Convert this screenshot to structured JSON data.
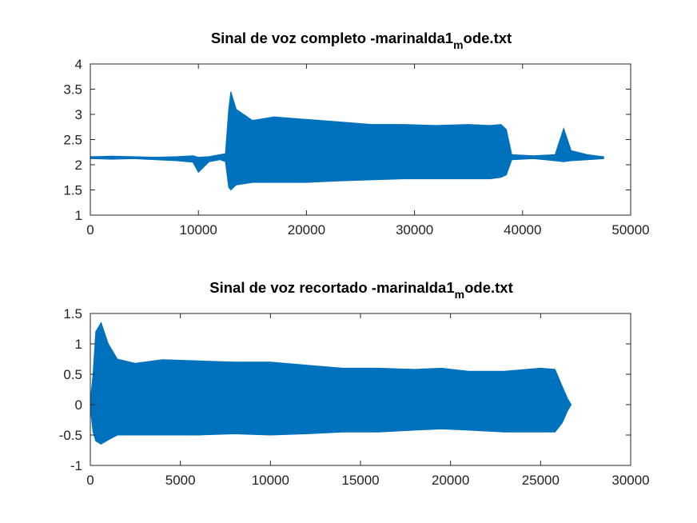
{
  "chart_data": [
    {
      "type": "line",
      "title": {
        "main": "Sinal de voz completo -marinalda1",
        "sub": "m",
        "tail": "ode.txt"
      },
      "xlim": [
        0,
        50000
      ],
      "ylim": [
        1,
        4
      ],
      "xticks": [
        0,
        10000,
        20000,
        30000,
        40000,
        50000
      ],
      "yticks": [
        1,
        1.5,
        2,
        2.5,
        3,
        3.5,
        4
      ],
      "xtick_labels": [
        "0",
        "10000",
        "20000",
        "30000",
        "40000",
        "50000"
      ],
      "ytick_labels": [
        "1",
        "1.5",
        "2",
        "2.5",
        "3",
        "3.5",
        "4"
      ],
      "series": [
        {
          "color": "#0072bd",
          "x": [
            0,
            2000,
            4000,
            6000,
            8000,
            9500,
            10000,
            11000,
            12000,
            12500,
            12800,
            13000,
            13500,
            15000,
            17000,
            20000,
            23000,
            26000,
            29000,
            32000,
            35000,
            37000,
            38000,
            38500,
            39000,
            41000,
            43000,
            43800,
            44500,
            46000,
            47500
          ],
          "upper": [
            2.16,
            2.17,
            2.16,
            2.15,
            2.16,
            2.18,
            2.15,
            2.16,
            2.2,
            2.22,
            3.1,
            3.45,
            3.1,
            2.88,
            2.95,
            2.9,
            2.85,
            2.8,
            2.8,
            2.78,
            2.8,
            2.78,
            2.8,
            2.7,
            2.2,
            2.18,
            2.2,
            2.72,
            2.28,
            2.2,
            2.16
          ],
          "lower": [
            2.12,
            2.11,
            2.12,
            2.1,
            2.08,
            2.05,
            1.85,
            2.06,
            2.1,
            2.06,
            1.55,
            1.5,
            1.6,
            1.65,
            1.65,
            1.65,
            1.68,
            1.7,
            1.72,
            1.72,
            1.72,
            1.72,
            1.75,
            1.8,
            2.1,
            2.12,
            2.08,
            2.06,
            2.08,
            2.1,
            2.12
          ]
        }
      ]
    },
    {
      "type": "line",
      "title": {
        "main": "Sinal de voz recortado -marinalda1",
        "sub": "m",
        "tail": "ode.txt"
      },
      "xlim": [
        0,
        30000
      ],
      "ylim": [
        -1,
        1.5
      ],
      "xticks": [
        0,
        5000,
        10000,
        15000,
        20000,
        25000,
        30000
      ],
      "yticks": [
        -1,
        -0.5,
        0,
        0.5,
        1,
        1.5
      ],
      "xtick_labels": [
        "0",
        "5000",
        "10000",
        "15000",
        "20000",
        "25000",
        "30000"
      ],
      "ytick_labels": [
        "-1",
        "-0.5",
        "0",
        "0.5",
        "1",
        "1.5"
      ],
      "series": [
        {
          "color": "#0072bd",
          "x": [
            0,
            150,
            300,
            600,
            1000,
            1500,
            2500,
            4000,
            6000,
            8000,
            10000,
            12000,
            14000,
            16000,
            18000,
            19500,
            21000,
            23000,
            25000,
            25800,
            26200,
            26500,
            26700
          ],
          "upper": [
            0.05,
            0.5,
            1.2,
            1.35,
            1.0,
            0.75,
            0.68,
            0.74,
            0.72,
            0.7,
            0.7,
            0.65,
            0.6,
            0.6,
            0.58,
            0.6,
            0.55,
            0.55,
            0.6,
            0.58,
            0.3,
            0.1,
            0.0
          ],
          "lower": [
            -0.05,
            -0.45,
            -0.6,
            -0.65,
            -0.58,
            -0.5,
            -0.5,
            -0.5,
            -0.5,
            -0.48,
            -0.5,
            -0.48,
            -0.45,
            -0.45,
            -0.42,
            -0.4,
            -0.42,
            -0.45,
            -0.45,
            -0.45,
            -0.3,
            -0.1,
            0.0
          ]
        }
      ]
    }
  ]
}
